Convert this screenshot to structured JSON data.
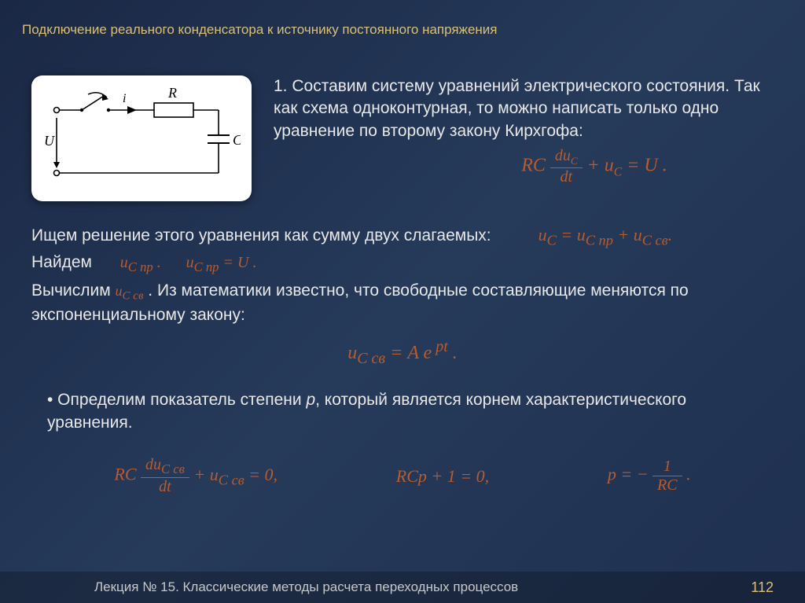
{
  "header": {
    "title": "Подключение реального конденсатора к источнику постоянного напряжения"
  },
  "circuit": {
    "labels": {
      "U": "U",
      "i": "i",
      "R": "R",
      "C": "C"
    },
    "stroke": "#000000",
    "bg": "#ffffff"
  },
  "step1": {
    "text": "1. Составим систему уравнений электрического состояния. Так как схема одноконтурная, то можно написать только одно уравнение по второму закону Кирхгофа:"
  },
  "eq1": {
    "lhs_pre": "RC",
    "frac_num": "du",
    "frac_num_sub": "C",
    "frac_den": "dt",
    "plus": " + u",
    "plus_sub": "C",
    "rhs": " = U ."
  },
  "line2": {
    "text": "Ищем решение этого уравнения как сумму двух слагаемых:",
    "eq": "u<sub>C</sub> = u<sub>C пр</sub> + u<sub>C св</sub>."
  },
  "line3": {
    "pre": "Найдем",
    "eq1": "u<sub>C пр</sub> .",
    "eq2": "u<sub>C пр</sub> = U ."
  },
  "line4": {
    "pre": "Вычислим ",
    "eq": "u<sub>C св</sub>",
    "post": " . Из математики известно, что свободные составляющие меняются по экспоненциальному закону:"
  },
  "eq2_center": "u<sub>C св</sub> = A e<sup> pt</sup> .",
  "line5": {
    "text": "• Определим показатель степени <i>p</i>, который является корнем характеристического уравнения."
  },
  "eqrow": {
    "a_pre": "RC",
    "a_frac_num": "du<sub>C св</sub>",
    "a_frac_den": "dt",
    "a_post": " + u<sub>C св</sub> = 0,",
    "b": "RCp + 1 = 0,",
    "c_pre": "p = − ",
    "c_frac_num": "1",
    "c_frac_den": "RC",
    "c_post": " ."
  },
  "footer": {
    "lecture": "Лекция № 15. Классические методы расчета переходных процессов",
    "page": "112"
  },
  "colors": {
    "accent": "#d8c078",
    "formula": "#b85c2e",
    "text": "#e8e8e8"
  }
}
